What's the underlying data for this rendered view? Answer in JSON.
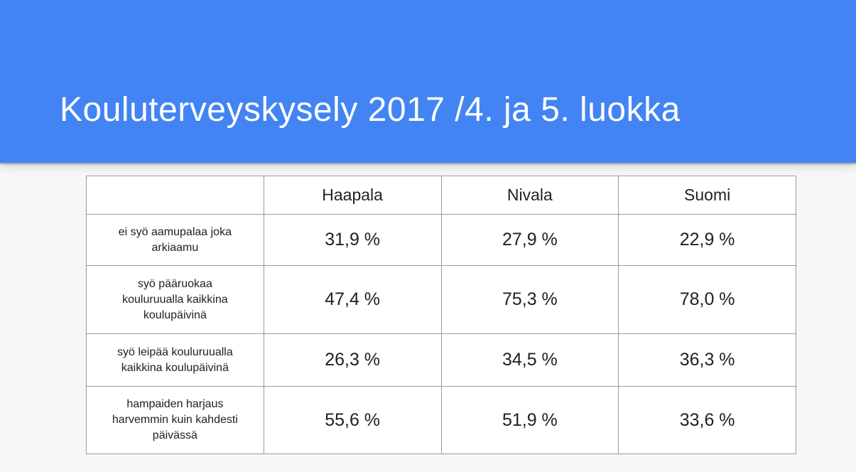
{
  "slide": {
    "title": "Kouluterveyskysely 2017 /4. ja 5. luokka"
  },
  "table": {
    "corner": "",
    "columns": [
      "Haapala",
      "Nivala",
      "Suomi"
    ],
    "rows": [
      {
        "label": "ei syö aamupalaa joka\narkiaamu",
        "values": [
          "31,9 %",
          "27,9 %",
          "22,9 %"
        ]
      },
      {
        "label": "syö pääruokaa\nkouluruualla kaikkina\nkoulupäivinä",
        "values": [
          "47,4 %",
          "75,3 %",
          "78,0 %"
        ]
      },
      {
        "label": "syö leipää kouluruualla\nkaikkina koulupäivinä",
        "values": [
          "26,3 %",
          "34,5 %",
          "36,3 %"
        ]
      },
      {
        "label": "hampaiden harjaus\nharvemmin kuin kahdesti\npäivässä",
        "values": [
          "55,6 %",
          "51,9 %",
          "33,6 %"
        ]
      }
    ]
  },
  "colors": {
    "banner_blue": "#4284F3",
    "background_gray": "#F6F7F7",
    "table_border_gray": "#9B9B9B",
    "cell_background": "#FFFFFF",
    "text_dark": "#212121",
    "title_text": "#FFFFFF"
  }
}
